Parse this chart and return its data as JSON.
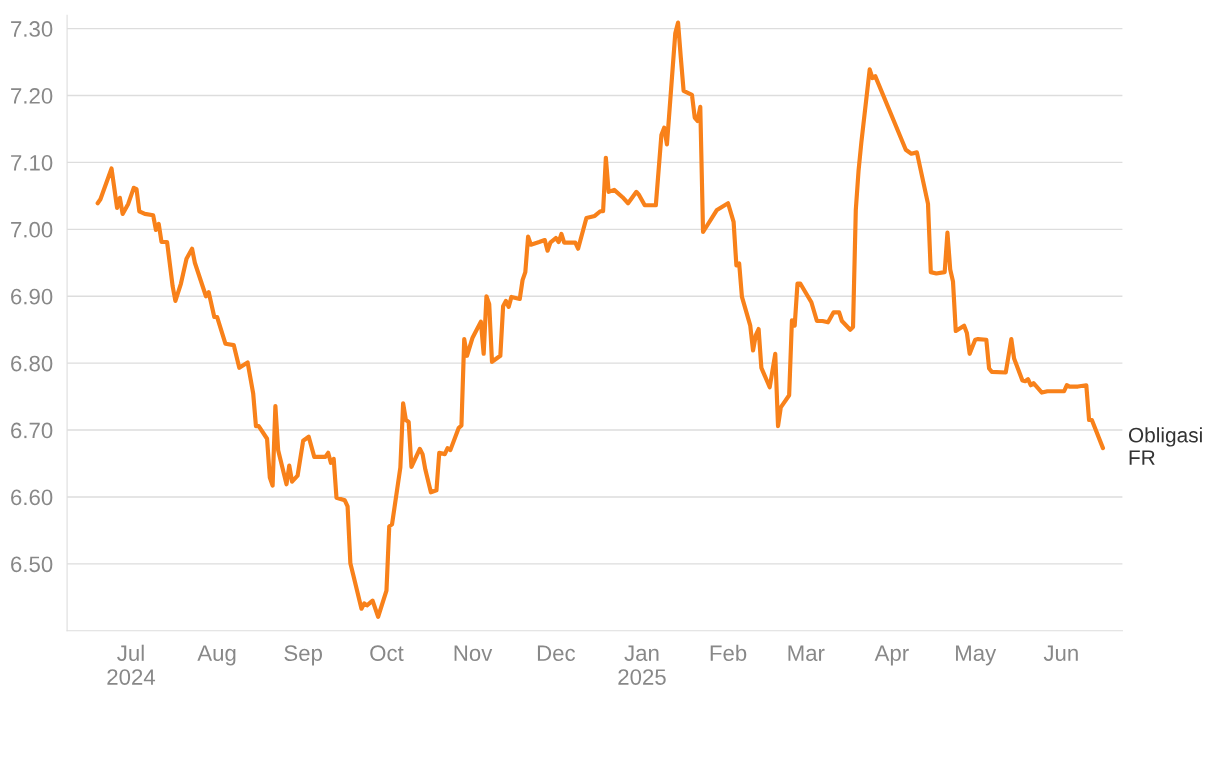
{
  "chart_data": {
    "type": "line",
    "x": [
      "2024-06-19",
      "2024-06-20",
      "2024-06-24",
      "2024-06-26",
      "2024-06-27",
      "2024-06-28",
      "2024-06-30",
      "2024-07-02",
      "2024-07-03",
      "2024-07-04",
      "2024-07-06",
      "2024-07-09",
      "2024-07-10",
      "2024-07-11",
      "2024-07-12",
      "2024-07-14",
      "2024-07-16",
      "2024-07-17",
      "2024-07-19",
      "2024-07-21",
      "2024-07-23",
      "2024-07-24",
      "2024-07-26",
      "2024-07-28",
      "2024-07-29",
      "2024-07-31",
      "2024-08-01",
      "2024-08-04",
      "2024-08-07",
      "2024-08-09",
      "2024-08-12",
      "2024-08-14",
      "2024-08-15",
      "2024-08-16",
      "2024-08-19",
      "2024-08-20",
      "2024-08-21",
      "2024-08-22",
      "2024-08-23",
      "2024-08-26",
      "2024-08-27",
      "2024-08-28",
      "2024-08-30",
      "2024-09-01",
      "2024-09-03",
      "2024-09-05",
      "2024-09-09",
      "2024-09-10",
      "2024-09-11",
      "2024-09-12",
      "2024-09-13",
      "2024-09-16",
      "2024-09-17",
      "2024-09-18",
      "2024-09-19",
      "2024-09-22",
      "2024-09-23",
      "2024-09-24",
      "2024-09-26",
      "2024-09-28",
      "2024-10-01",
      "2024-10-02",
      "2024-10-03",
      "2024-10-06",
      "2024-10-07",
      "2024-10-08",
      "2024-10-09",
      "2024-10-10",
      "2024-10-13",
      "2024-10-14",
      "2024-10-15",
      "2024-10-17",
      "2024-10-19",
      "2024-10-20",
      "2024-10-22",
      "2024-10-23",
      "2024-10-24",
      "2024-10-27",
      "2024-10-28",
      "2024-10-29",
      "2024-10-30",
      "2024-11-01",
      "2024-11-04",
      "2024-11-05",
      "2024-11-06",
      "2024-11-07",
      "2024-11-08",
      "2024-11-11",
      "2024-11-12",
      "2024-11-13",
      "2024-11-14",
      "2024-11-15",
      "2024-11-18",
      "2024-11-19",
      "2024-11-20",
      "2024-11-21",
      "2024-11-22",
      "2024-11-25",
      "2024-11-27",
      "2024-11-28",
      "2024-11-29",
      "2024-12-01",
      "2024-12-02",
      "2024-12-03",
      "2024-12-04",
      "2024-12-08",
      "2024-12-09",
      "2024-12-12",
      "2024-12-15",
      "2024-12-17",
      "2024-12-18",
      "2024-12-19",
      "2024-12-20",
      "2024-12-22",
      "2024-12-25",
      "2024-12-27",
      "2024-12-30",
      "2024-12-31",
      "2025-01-02",
      "2025-01-06",
      "2025-01-08",
      "2025-01-09",
      "2025-01-10",
      "2025-01-13",
      "2025-01-14",
      "2025-01-15",
      "2025-01-16",
      "2025-01-19",
      "2025-01-20",
      "2025-01-21",
      "2025-01-22",
      "2025-01-23",
      "2025-01-28",
      "2025-02-01",
      "2025-02-03",
      "2025-02-04",
      "2025-02-05",
      "2025-02-06",
      "2025-02-09",
      "2025-02-10",
      "2025-02-11",
      "2025-02-12",
      "2025-02-13",
      "2025-02-16",
      "2025-02-18",
      "2025-02-19",
      "2025-02-20",
      "2025-02-23",
      "2025-02-24",
      "2025-02-25",
      "2025-02-26",
      "2025-02-27",
      "2025-03-03",
      "2025-03-05",
      "2025-03-07",
      "2025-03-09",
      "2025-03-11",
      "2025-03-13",
      "2025-03-14",
      "2025-03-17",
      "2025-03-18",
      "2025-03-19",
      "2025-03-20",
      "2025-03-21",
      "2025-03-24",
      "2025-03-25",
      "2025-03-26",
      "2025-04-06",
      "2025-04-08",
      "2025-04-10",
      "2025-04-14",
      "2025-04-15",
      "2025-04-17",
      "2025-04-20",
      "2025-04-21",
      "2025-04-22",
      "2025-04-23",
      "2025-04-24",
      "2025-04-27",
      "2025-04-28",
      "2025-04-29",
      "2025-05-01",
      "2025-05-02",
      "2025-05-05",
      "2025-05-06",
      "2025-05-07",
      "2025-05-12",
      "2025-05-14",
      "2025-05-15",
      "2025-05-18",
      "2025-05-19",
      "2025-05-20",
      "2025-05-21",
      "2025-05-22",
      "2025-05-25",
      "2025-05-27",
      "2025-05-30",
      "2025-06-02",
      "2025-06-03",
      "2025-06-04",
      "2025-06-07",
      "2025-06-10",
      "2025-06-11",
      "2025-06-12",
      "2025-06-16"
    ],
    "series": [
      {
        "name": "Obligasi FR",
        "color": "#f8811a",
        "values": [
          7.039,
          7.045,
          7.091,
          7.032,
          7.047,
          7.023,
          7.038,
          7.062,
          7.06,
          7.027,
          7.023,
          7.021,
          6.999,
          7.008,
          6.981,
          6.981,
          6.915,
          6.893,
          6.919,
          6.956,
          6.971,
          6.95,
          6.925,
          6.9,
          6.906,
          6.869,
          6.869,
          6.829,
          6.827,
          6.793,
          6.801,
          6.755,
          6.706,
          6.706,
          6.687,
          6.629,
          6.617,
          6.736,
          6.67,
          6.619,
          6.647,
          6.623,
          6.632,
          6.684,
          6.69,
          6.66,
          6.66,
          6.666,
          6.651,
          6.657,
          6.599,
          6.595,
          6.586,
          6.501,
          6.484,
          6.433,
          6.441,
          6.438,
          6.445,
          6.421,
          6.46,
          6.556,
          6.559,
          6.644,
          6.74,
          6.715,
          6.712,
          6.645,
          6.672,
          6.664,
          6.641,
          6.607,
          6.61,
          6.666,
          6.664,
          6.673,
          6.67,
          6.703,
          6.707,
          6.836,
          6.811,
          6.838,
          6.862,
          6.814,
          6.9,
          6.888,
          6.802,
          6.811,
          6.885,
          6.893,
          6.884,
          6.899,
          6.896,
          6.924,
          6.936,
          6.989,
          6.977,
          6.981,
          6.984,
          6.968,
          6.98,
          6.987,
          6.981,
          6.993,
          6.98,
          6.98,
          6.971,
          7.017,
          7.02,
          7.027,
          7.027,
          7.107,
          7.056,
          7.059,
          7.048,
          7.039,
          7.056,
          7.051,
          7.036,
          7.036,
          7.141,
          7.152,
          7.127,
          7.293,
          7.309,
          7.256,
          7.207,
          7.201,
          7.167,
          7.162,
          7.183,
          6.996,
          7.029,
          7.039,
          7.011,
          6.946,
          6.949,
          6.899,
          6.856,
          6.819,
          6.842,
          6.851,
          6.793,
          6.764,
          6.814,
          6.706,
          6.734,
          6.752,
          6.864,
          6.856,
          6.919,
          6.919,
          6.891,
          6.863,
          6.863,
          6.861,
          6.876,
          6.876,
          6.863,
          6.85,
          6.854,
          7.029,
          7.088,
          7.13,
          7.239,
          7.226,
          7.229,
          7.119,
          7.113,
          7.115,
          7.038,
          6.936,
          6.934,
          6.936,
          6.995,
          6.94,
          6.922,
          6.848,
          6.856,
          6.845,
          6.814,
          6.835,
          6.836,
          6.835,
          6.792,
          6.787,
          6.786,
          6.836,
          6.807,
          6.774,
          6.773,
          6.776,
          6.767,
          6.77,
          6.756,
          6.758,
          6.758,
          6.758,
          6.767,
          6.765,
          6.765,
          6.767,
          6.715,
          6.715,
          6.673
        ]
      }
    ],
    "ylim": [
      6.4,
      7.32
    ],
    "yticks": [
      {
        "value": 6.5,
        "label": "6.50"
      },
      {
        "value": 6.6,
        "label": "6.60"
      },
      {
        "value": 6.7,
        "label": "6.70"
      },
      {
        "value": 6.8,
        "label": "6.80"
      },
      {
        "value": 6.9,
        "label": "6.90"
      },
      {
        "value": 7.0,
        "label": "7.00"
      },
      {
        "value": 7.1,
        "label": "7.10"
      },
      {
        "value": 7.2,
        "label": "7.20"
      },
      {
        "value": 7.3,
        "label": "7.30"
      }
    ],
    "xlim": [
      "2024-06-08",
      "2025-06-23"
    ],
    "xticks": [
      {
        "value": "2024-07-01",
        "label": "Jul\n2024"
      },
      {
        "value": "2024-08-01",
        "label": "Aug"
      },
      {
        "value": "2024-09-01",
        "label": "Sep"
      },
      {
        "value": "2024-10-01",
        "label": "Oct"
      },
      {
        "value": "2024-11-01",
        "label": "Nov"
      },
      {
        "value": "2024-12-01",
        "label": "Dec"
      },
      {
        "value": "2025-01-01",
        "label": "Jan\n2025"
      },
      {
        "value": "2025-02-01",
        "label": "Feb"
      },
      {
        "value": "2025-03-01",
        "label": "Mar"
      },
      {
        "value": "2025-04-01",
        "label": "Apr"
      },
      {
        "value": "2025-05-01",
        "label": "May"
      },
      {
        "value": "2025-06-01",
        "label": "Jun"
      }
    ],
    "grid": "y",
    "line_style": "solid",
    "marker": "none"
  }
}
